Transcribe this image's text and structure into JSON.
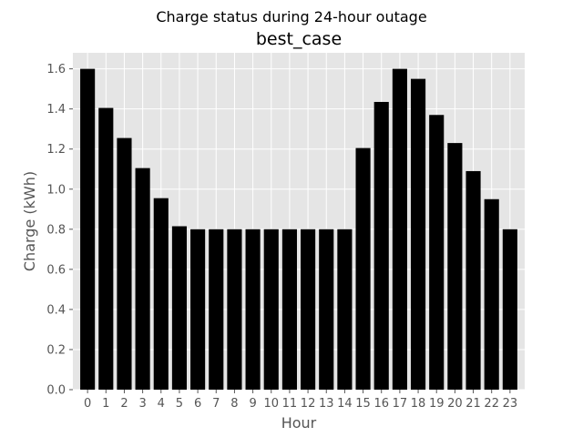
{
  "chart_data": {
    "type": "bar",
    "suptitle": "Charge status during 24-hour outage",
    "title": "best_case",
    "xlabel": "Hour",
    "ylabel": "Charge (kWh)",
    "categories": [
      "0",
      "1",
      "2",
      "3",
      "4",
      "5",
      "6",
      "7",
      "8",
      "9",
      "10",
      "11",
      "12",
      "13",
      "14",
      "15",
      "16",
      "17",
      "18",
      "19",
      "20",
      "21",
      "22",
      "23"
    ],
    "values": [
      1.6,
      1.405,
      1.255,
      1.105,
      0.955,
      0.815,
      0.8,
      0.8,
      0.8,
      0.8,
      0.8,
      0.8,
      0.8,
      0.8,
      0.8,
      1.205,
      1.435,
      1.6,
      1.55,
      1.37,
      1.23,
      1.09,
      0.95,
      0.8
    ],
    "ylim": [
      0,
      1.68
    ],
    "yticks": [
      "0.0",
      "0.2",
      "0.4",
      "0.6",
      "0.8",
      "1.0",
      "1.2",
      "1.4",
      "1.6"
    ],
    "grid": true,
    "bar_color": "#000000",
    "background_color": "#E5E5E5",
    "grid_color": "#FFFFFF"
  }
}
